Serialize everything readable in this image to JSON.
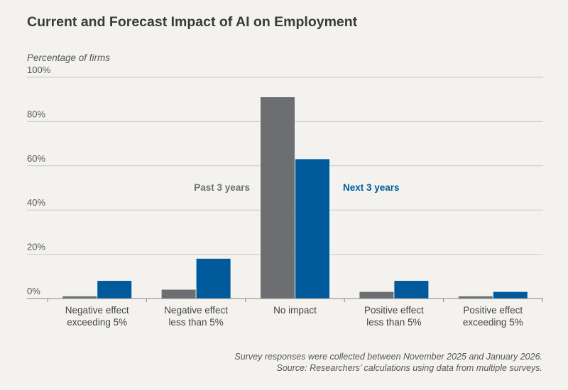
{
  "colors": {
    "past": "#6d6e71",
    "next": "#005a9c",
    "grid": "#c9c9c9",
    "axis": "#888888"
  },
  "chart_data": {
    "type": "bar",
    "title": "Current and Forecast Impact of AI on Employment",
    "ylabel": "Percentage of firms",
    "xlabel": "",
    "ylim": [
      0,
      100
    ],
    "yticks": [
      0,
      20,
      40,
      60,
      80,
      100
    ],
    "ytick_labels": [
      "0%",
      "20%",
      "40%",
      "60%",
      "80%",
      "100%"
    ],
    "grid": true,
    "categories": [
      [
        "Negative effect",
        "exceeding 5%"
      ],
      [
        "Negative effect",
        "less than 5%"
      ],
      [
        "No impact"
      ],
      [
        "Positive effect",
        "less than 5%"
      ],
      [
        "Positive effect",
        "exceeding 5%"
      ]
    ],
    "series": [
      {
        "name": "Past 3 years",
        "values": [
          1,
          4,
          91,
          3,
          1
        ]
      },
      {
        "name": "Next 3 years",
        "values": [
          8,
          18,
          63,
          8,
          3
        ]
      }
    ],
    "footnote": [
      "Survey responses were collected between November 2025 and January 2026.",
      "Source: Researchers’ calculations using data from multiple surveys."
    ]
  }
}
